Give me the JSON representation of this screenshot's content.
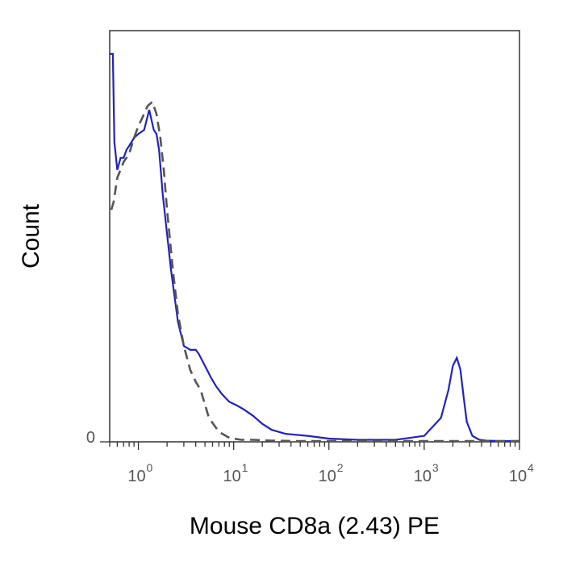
{
  "chart_data": {
    "type": "line",
    "title": "",
    "xlabel": "Mouse CD8a (2.43) PE",
    "ylabel": "Count",
    "x_scale": "log",
    "xlim": [
      0.5,
      10000
    ],
    "ylim": [
      0,
      100
    ],
    "x_ticks": [
      {
        "base": "10",
        "exp": "0",
        "value": 1
      },
      {
        "base": "10",
        "exp": "1",
        "value": 10
      },
      {
        "base": "10",
        "exp": "2",
        "value": 100
      },
      {
        "base": "10",
        "exp": "3",
        "value": 1000
      },
      {
        "base": "10",
        "exp": "4",
        "value": 10000
      }
    ],
    "y_ticks": [
      {
        "label": "0",
        "value": 0
      }
    ],
    "grid": false,
    "series": [
      {
        "color": "#2222bb",
        "style": "solid",
        "x": [
          0.5,
          0.53,
          0.54,
          0.56,
          0.6,
          0.65,
          0.7,
          0.75,
          0.8,
          0.9,
          1.0,
          1.15,
          1.3,
          1.45,
          1.55,
          1.65,
          1.8,
          2.0,
          2.2,
          2.6,
          3.0,
          3.5,
          4.0,
          4.3,
          5.0,
          5.8,
          6.5,
          7.5,
          9,
          11,
          13,
          16,
          20,
          25,
          35,
          60,
          100,
          200,
          500,
          1000,
          1500,
          1800,
          2000,
          2200,
          2400,
          2600,
          2800,
          3200,
          3800,
          4500,
          6000,
          10000
        ],
        "y": [
          97,
          97,
          97,
          75,
          68,
          71,
          71,
          73,
          74,
          76,
          77,
          78,
          83,
          78,
          77,
          73,
          62,
          52,
          43,
          30,
          24,
          23,
          23,
          22,
          19,
          16,
          14,
          12,
          10,
          9,
          8,
          6.5,
          4.5,
          3,
          2,
          1.5,
          0.8,
          0.5,
          0.5,
          1.5,
          6,
          13,
          19,
          21,
          18,
          11,
          5,
          1.5,
          0.5,
          0.3,
          0.2,
          0.2
        ]
      },
      {
        "color": "#555555",
        "style": "dashed",
        "x": [
          0.52,
          0.55,
          0.6,
          0.7,
          0.8,
          0.9,
          1.0,
          1.1,
          1.25,
          1.4,
          1.55,
          1.7,
          1.85,
          2.0,
          2.3,
          2.6,
          3.0,
          3.5,
          4.0,
          4.5,
          5.5,
          7.0,
          9,
          12,
          16,
          25,
          40,
          100,
          1000,
          10000
        ],
        "y": [
          58,
          60,
          66,
          70,
          72,
          76,
          79,
          81,
          84,
          85,
          82,
          76,
          68,
          58,
          43,
          32,
          24,
          18,
          15,
          13,
          6,
          2.5,
          1,
          0.5,
          0.5,
          0.3,
          0.2,
          0.2,
          0.2,
          0.2
        ]
      }
    ]
  }
}
